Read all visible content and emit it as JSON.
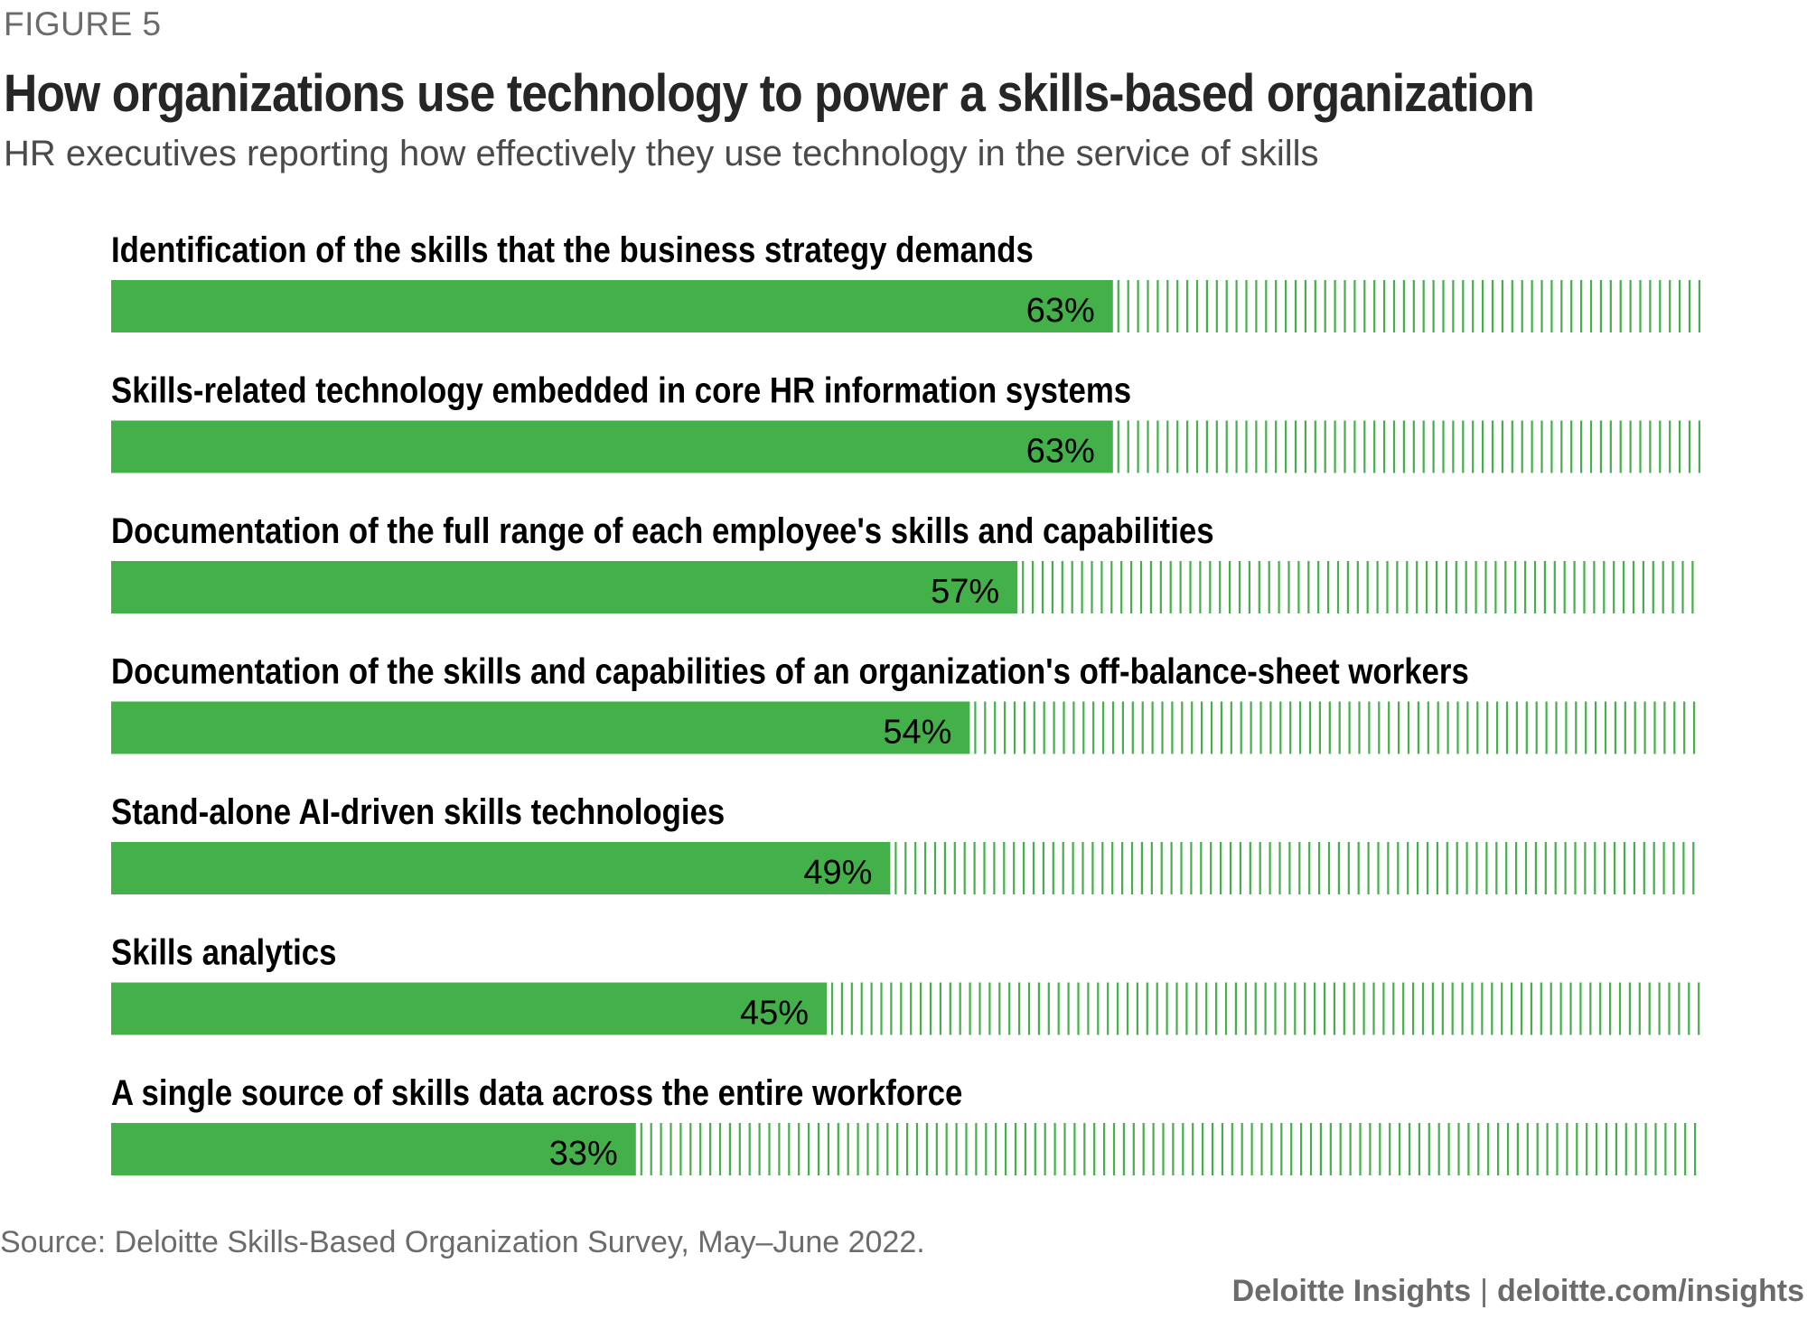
{
  "figure_label": "FIGURE 5",
  "title": "How organizations use technology to power a skills-based organization",
  "subtitle": "HR executives reporting how effectively they use technology in the service of skills",
  "source": "Source: Deloitte Skills-Based Organization Survey, May–June 2022.",
  "footer": {
    "brand": "Deloitte Insights",
    "separator": "|",
    "url": "deloitte.com/insights"
  },
  "colors": {
    "bar": "#43b04a",
    "remainder_stripes": "#43b04a",
    "label": "#000000"
  },
  "chart_data": {
    "type": "bar",
    "orientation": "horizontal",
    "categories": [
      "Identification of the skills that the business strategy demands",
      "Skills-related technology embedded in core HR information systems",
      "Documentation of the full range of each employee's skills and capabilities",
      "Documentation of the skills and capabilities of an organization's off-balance-sheet workers",
      "Stand-alone AI-driven skills technologies",
      "Skills analytics",
      "A single source of skills data across the entire workforce"
    ],
    "values": [
      63,
      63,
      57,
      54,
      49,
      45,
      33
    ],
    "value_labels": [
      "63%",
      "63%",
      "57%",
      "54%",
      "49%",
      "45%",
      "33%"
    ],
    "unit": "%",
    "xlim": [
      0,
      100
    ],
    "remainder_style": "vertical stripes",
    "grid": false,
    "legend": "none"
  }
}
